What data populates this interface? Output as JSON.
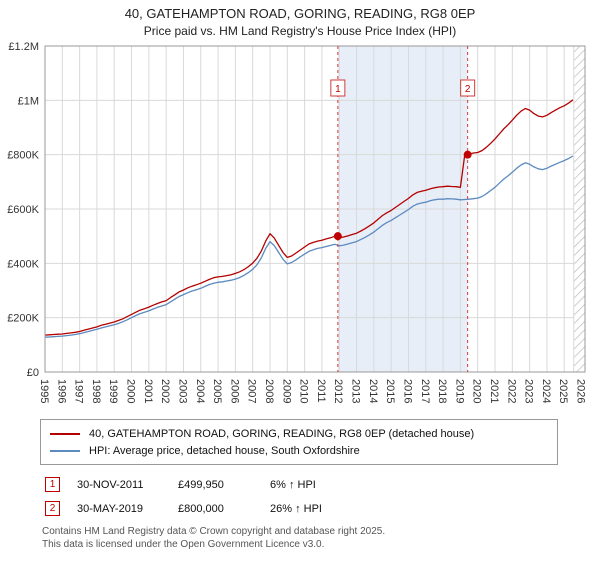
{
  "title": "40, GATEHAMPTON ROAD, GORING, READING, RG8 0EP",
  "subtitle": "Price paid vs. HM Land Registry's House Price Index (HPI)",
  "legend": [
    {
      "label": "40, GATEHAMPTON ROAD, GORING, READING, RG8 0EP (detached house)",
      "color": "#b40000"
    },
    {
      "label": "HPI: Average price, detached house, South Oxfordshire",
      "color": "#5b8abf"
    }
  ],
  "annotations": [
    {
      "num": "1",
      "date": "30-NOV-2011",
      "price": "£499,950",
      "hpi": "6% ↑ HPI"
    },
    {
      "num": "2",
      "date": "30-MAY-2019",
      "price": "£800,000",
      "hpi": "26% ↑ HPI"
    }
  ],
  "footer": [
    "Contains HM Land Registry data © Crown copyright and database right 2025.",
    "This data is licensed under the Open Government Licence v3.0."
  ],
  "chart_data": {
    "type": "line",
    "title": "Price paid vs. HM Land Registry's House Price Index (HPI)",
    "xlabel": "",
    "ylabel": "",
    "x_start": 1995,
    "x_step": 0.25,
    "x_domain": [
      1995,
      2026.2
    ],
    "y_domain": [
      0,
      1200
    ],
    "y_unit": "GBP thousands",
    "grid": true,
    "legend_position": "bottom",
    "y_ticks": [
      {
        "v": 0,
        "label": "£0"
      },
      {
        "v": 200,
        "label": "£200K"
      },
      {
        "v": 400,
        "label": "£400K"
      },
      {
        "v": 600,
        "label": "£600K"
      },
      {
        "v": 800,
        "label": "£800K"
      },
      {
        "v": 1000,
        "label": "£1M"
      },
      {
        "v": 1200,
        "label": "£1.2M"
      }
    ],
    "x_ticks": [
      1995,
      1996,
      1997,
      1998,
      1999,
      2000,
      2001,
      2002,
      2003,
      2004,
      2005,
      2006,
      2007,
      2008,
      2009,
      2010,
      2011,
      2012,
      2013,
      2014,
      2015,
      2016,
      2017,
      2018,
      2019,
      2020,
      2021,
      2022,
      2023,
      2024,
      2025,
      2026
    ],
    "series": [
      {
        "name": "40, GATEHAMPTON ROAD, GORING, READING, RG8 0EP (detached house)",
        "color": "#b40000",
        "values_k": [
          136,
          137,
          138,
          139,
          140,
          142,
          144,
          146,
          149,
          154,
          158,
          162,
          166,
          172,
          176,
          180,
          184,
          190,
          196,
          204,
          212,
          220,
          228,
          233,
          239,
          246,
          252,
          258,
          263,
          274,
          284,
          295,
          302,
          310,
          316,
          321,
          327,
          334,
          341,
          347,
          350,
          352,
          355,
          358,
          363,
          369,
          377,
          388,
          401,
          419,
          445,
          482,
          509,
          493,
          466,
          440,
          422,
          427,
          438,
          449,
          460,
          471,
          477,
          482,
          485,
          490,
          494,
          500,
          494,
          497,
          501,
          506,
          511,
          519,
          528,
          538,
          549,
          563,
          576,
          586,
          595,
          606,
          617,
          628,
          639,
          652,
          661,
          665,
          669,
          674,
          678,
          681,
          682,
          684,
          683,
          682,
          680,
          798,
          802,
          806,
          808,
          815,
          827,
          842,
          858,
          876,
          895,
          910,
          927,
          945,
          960,
          970,
          964,
          951,
          942,
          939,
          945,
          955,
          964,
          973,
          980,
          990,
          1002
        ]
      },
      {
        "name": "HPI: Average price, detached house, South Oxfordshire",
        "color": "#5b8abf",
        "values_k": [
          128,
          129,
          130,
          131,
          132,
          134,
          136,
          138,
          141,
          145,
          149,
          153,
          157,
          162,
          166,
          170,
          174,
          179,
          185,
          192,
          200,
          208,
          215,
          220,
          225,
          232,
          238,
          243,
          248,
          258,
          268,
          278,
          285,
          292,
          298,
          303,
          308,
          315,
          322,
          327,
          330,
          332,
          335,
          338,
          342,
          348,
          356,
          366,
          378,
          395,
          420,
          455,
          480,
          465,
          440,
          415,
          398,
          403,
          413,
          424,
          434,
          444,
          450,
          455,
          458,
          462,
          466,
          470,
          464,
          467,
          471,
          476,
          480,
          488,
          496,
          505,
          515,
          528,
          540,
          550,
          558,
          568,
          578,
          588,
          598,
          610,
          618,
          622,
          625,
          630,
          634,
          636,
          636,
          638,
          637,
          636,
          634,
          635,
          636,
          638,
          640,
          646,
          656,
          668,
          680,
          695,
          710,
          722,
          735,
          750,
          762,
          770,
          765,
          755,
          748,
          745,
          750,
          758,
          765,
          772,
          778,
          786,
          795
        ]
      }
    ],
    "markers": [
      {
        "num": "1",
        "x": 2011.92,
        "y_k": 500
      },
      {
        "num": "2",
        "x": 2019.42,
        "y_k": 800
      }
    ],
    "shaded_region": [
      2011.92,
      2019.42
    ],
    "hatch_region": [
      2025.55,
      2026.2
    ],
    "colors": {
      "grid": "#d9d9d9",
      "border": "#999999",
      "shade": "#e8eef8",
      "dashed": "#d23b3b",
      "hatch": "#bbbbbb",
      "tick_text": "#333333"
    }
  }
}
